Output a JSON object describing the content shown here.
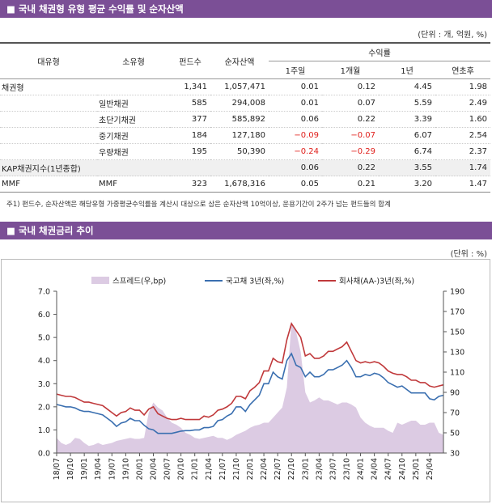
{
  "table_section": {
    "title": "국내 채권형 유형 평균 수익률 및 순자산액",
    "unit": "(단위 : 개, 억원, %)",
    "columns": [
      "대유형",
      "소유형",
      "펀드수",
      "순자산액",
      "1주일",
      "1개월",
      "1년",
      "연초후"
    ],
    "group": "수익률",
    "rows": [
      [
        "채권형",
        null,
        "1,341",
        "1,057,471",
        "0.01",
        "0.12",
        "4.45",
        "1.98"
      ],
      [
        null,
        "일반채권",
        "585",
        "294,008",
        "0.01",
        "0.07",
        "5.59",
        "2.49"
      ],
      [
        null,
        "초단기채권",
        "377",
        "585,892",
        "0.06",
        "0.22",
        "3.39",
        "1.60"
      ],
      [
        null,
        "중기채권",
        "184",
        "127,180",
        "−0.09",
        "−0.07",
        "6.07",
        "2.54"
      ],
      [
        null,
        "우량채권",
        "195",
        "50,390",
        "−0.24",
        "−0.29",
        "6.74",
        "2.37"
      ],
      [
        "KAP채권지수(1년종합)",
        null,
        null,
        null,
        "0.06",
        "0.22",
        "3.55",
        "1.74"
      ],
      [
        "MMF",
        "MMF",
        "323",
        "1,678,316",
        "0.05",
        "0.21",
        "3.20",
        "1.47"
      ]
    ],
    "note": "주1) 펀드수, 순자산액은 해당유형 가중평균수익률을 계산시 대상으로 삼은 순자산액 10억이상, 운용기간이 2주가 넘는 펀드들의 합계"
  },
  "chart_section": {
    "title": "국내 채권금리 추이",
    "unit": "(단위 : %)"
  },
  "chart_data": {
    "type": "line",
    "categories": [
      "18/07",
      null,
      null,
      "18/10",
      null,
      null,
      "19/01",
      null,
      null,
      "19/04",
      null,
      null,
      "19/07",
      null,
      null,
      "19/10",
      null,
      null,
      "20/01",
      null,
      null,
      "20/04",
      null,
      null,
      "20/07",
      null,
      null,
      "20/10",
      null,
      null,
      "21/01",
      null,
      null,
      "21/04",
      null,
      null,
      "21/07",
      null,
      null,
      "21/10",
      null,
      null,
      "22/01",
      null,
      null,
      "22/04",
      null,
      null,
      "22/07",
      null,
      null,
      "22/10",
      null,
      null,
      "23/01",
      null,
      null,
      "23/04",
      null,
      null,
      "23/07",
      null,
      null,
      "23/10",
      null,
      null,
      "24/01",
      null,
      null,
      "24/04",
      null,
      null,
      "24/07",
      null,
      null,
      "24/10",
      null,
      null,
      "25/01",
      null,
      null,
      "25/04",
      null,
      null,
      null
    ],
    "series": [
      {
        "name": "스프레드(우,bp)",
        "color": "#dccbe3",
        "type": "area",
        "axis": "y2",
        "values": [
          45,
          40,
          38,
          40,
          45,
          44,
          40,
          37,
          38,
          40,
          38,
          39,
          40,
          42,
          43,
          44,
          45,
          44,
          44,
          45,
          70,
          80,
          75,
          72,
          65,
          60,
          58,
          55,
          50,
          48,
          45,
          44,
          45,
          46,
          47,
          45,
          45,
          43,
          45,
          48,
          50,
          52,
          55,
          57,
          58,
          60,
          60,
          65,
          70,
          75,
          95,
          160,
          150,
          130,
          90,
          80,
          82,
          85,
          82,
          82,
          80,
          78,
          80,
          80,
          78,
          75,
          65,
          60,
          57,
          55,
          55,
          55,
          52,
          50,
          60,
          58,
          60,
          62,
          62,
          58,
          58,
          60,
          60,
          50,
          48
        ]
      },
      {
        "name": "국고채 3년(좌,%)",
        "color": "#3a6fb0",
        "values": [
          2.1,
          2.05,
          2.0,
          2.0,
          1.95,
          1.85,
          1.8,
          1.8,
          1.75,
          1.7,
          1.65,
          1.5,
          1.35,
          1.15,
          1.3,
          1.35,
          1.5,
          1.4,
          1.4,
          1.2,
          1.05,
          1.0,
          0.85,
          0.85,
          0.85,
          0.85,
          0.9,
          0.95,
          0.97,
          0.97,
          1.0,
          1.0,
          1.1,
          1.1,
          1.15,
          1.4,
          1.45,
          1.6,
          1.7,
          2.0,
          2.0,
          1.8,
          2.1,
          2.3,
          2.5,
          3.0,
          3.0,
          3.5,
          3.3,
          3.2,
          4.0,
          4.3,
          3.8,
          3.7,
          3.3,
          3.5,
          3.3,
          3.3,
          3.4,
          3.6,
          3.6,
          3.7,
          3.8,
          4.0,
          3.7,
          3.3,
          3.3,
          3.4,
          3.35,
          3.45,
          3.4,
          3.25,
          3.05,
          2.95,
          2.85,
          2.9,
          2.75,
          2.6,
          2.6,
          2.6,
          2.6,
          2.35,
          2.3,
          2.45,
          2.5
        ]
      },
      {
        "name": "회사채(AA-)3년(좌,%)",
        "color": "#c0393b",
        "values": [
          2.55,
          2.5,
          2.45,
          2.45,
          2.4,
          2.3,
          2.2,
          2.2,
          2.15,
          2.1,
          2.05,
          1.9,
          1.75,
          1.6,
          1.75,
          1.8,
          1.95,
          1.85,
          1.85,
          1.65,
          1.9,
          2.0,
          1.7,
          1.6,
          1.5,
          1.45,
          1.45,
          1.5,
          1.45,
          1.45,
          1.45,
          1.45,
          1.6,
          1.55,
          1.65,
          1.85,
          1.9,
          2.0,
          2.15,
          2.45,
          2.45,
          2.35,
          2.7,
          2.85,
          3.05,
          3.55,
          3.55,
          4.1,
          3.95,
          3.9,
          4.9,
          5.6,
          5.3,
          5.0,
          4.2,
          4.3,
          4.1,
          4.1,
          4.2,
          4.4,
          4.4,
          4.5,
          4.6,
          4.8,
          4.4,
          4.0,
          3.9,
          3.95,
          3.9,
          3.95,
          3.9,
          3.75,
          3.55,
          3.45,
          3.4,
          3.4,
          3.3,
          3.15,
          3.15,
          3.05,
          3.05,
          2.9,
          2.85,
          2.9,
          2.95
        ]
      }
    ],
    "ylim": [
      0,
      7
    ],
    "yticks": [
      {
        "value": 0,
        "label": "0.0"
      },
      {
        "value": 1,
        "label": "1.0"
      },
      {
        "value": 2,
        "label": "2.0"
      },
      {
        "value": 3,
        "label": "3.0"
      },
      {
        "value": 4,
        "label": "4.0"
      },
      {
        "value": 5,
        "label": "5.0"
      },
      {
        "value": 6,
        "label": "6.0"
      },
      {
        "value": 7,
        "label": "7.0"
      }
    ],
    "y2lim": [
      30,
      190
    ],
    "y2ticks": [
      30,
      50,
      70,
      90,
      110,
      130,
      150,
      170,
      190
    ],
    "grid": false,
    "legend": "top"
  }
}
